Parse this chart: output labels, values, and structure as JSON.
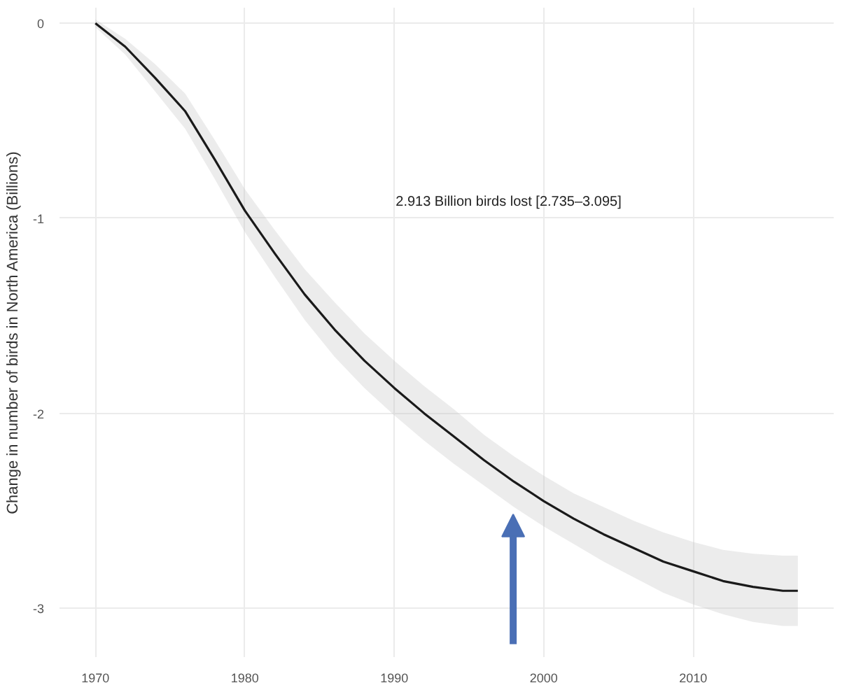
{
  "chart_data": {
    "type": "line",
    "ylabel": "Change in number of birds in North America (Billions)",
    "x": [
      1970,
      1972,
      1974,
      1976,
      1978,
      1980,
      1982,
      1984,
      1986,
      1988,
      1990,
      1992,
      1994,
      1996,
      1998,
      2000,
      2002,
      2004,
      2006,
      2008,
      2010,
      2012,
      2014,
      2016,
      2017
    ],
    "series": [
      {
        "color": "#1a1a1a",
        "values": [
          0,
          -0.12,
          -0.28,
          -0.45,
          -0.7,
          -0.96,
          -1.18,
          -1.39,
          -1.57,
          -1.73,
          -1.87,
          -2.0,
          -2.12,
          -2.24,
          -2.35,
          -2.45,
          -2.54,
          -2.62,
          -2.69,
          -2.76,
          -2.81,
          -2.86,
          -2.89,
          -2.91,
          -2.91
        ],
        "lower": [
          -0.02,
          -0.16,
          -0.35,
          -0.54,
          -0.8,
          -1.07,
          -1.3,
          -1.52,
          -1.71,
          -1.87,
          -2.01,
          -2.14,
          -2.26,
          -2.37,
          -2.48,
          -2.58,
          -2.67,
          -2.76,
          -2.84,
          -2.92,
          -2.98,
          -3.03,
          -3.07,
          -3.09,
          -3.09
        ],
        "upper": [
          0.02,
          -0.08,
          -0.21,
          -0.36,
          -0.6,
          -0.85,
          -1.06,
          -1.26,
          -1.43,
          -1.59,
          -1.73,
          -1.86,
          -1.98,
          -2.11,
          -2.22,
          -2.32,
          -2.41,
          -2.48,
          -2.55,
          -2.61,
          -2.66,
          -2.7,
          -2.72,
          -2.73,
          -2.73
        ]
      }
    ],
    "xlim": [
      1967.6,
      2019.4
    ],
    "ylim": [
      -3.25,
      0.08
    ],
    "xticks": [
      1970,
      1980,
      1990,
      2000,
      2010
    ],
    "yticks": [
      0,
      -1,
      -2,
      -3
    ],
    "grid": true,
    "annotations": [
      "2.913 Billion birds lost [2.735–3.095]"
    ]
  }
}
